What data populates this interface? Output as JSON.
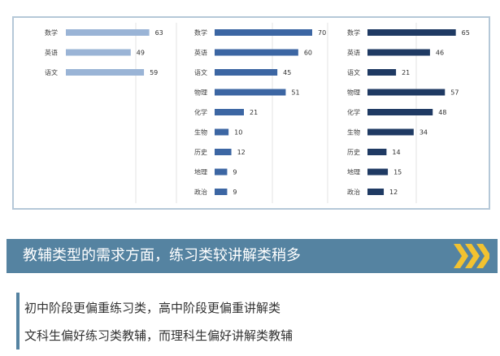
{
  "chart_data": [
    {
      "type": "bar",
      "orientation": "horizontal",
      "color": "#9ab4d6",
      "categories": [
        "数学",
        "英语",
        "语文"
      ],
      "values": [
        63,
        49,
        59
      ],
      "xlim": [
        0,
        70
      ],
      "grid": true
    },
    {
      "type": "bar",
      "orientation": "horizontal",
      "color": "#3c66a3",
      "categories": [
        "数学",
        "英语",
        "语文",
        "物理",
        "化学",
        "生物",
        "历史",
        "地理",
        "政治"
      ],
      "values": [
        70,
        60,
        45,
        51,
        21,
        10,
        12,
        9,
        9
      ],
      "xlim": [
        0,
        70
      ],
      "grid": true
    },
    {
      "type": "bar",
      "orientation": "horizontal",
      "color": "#1f3a63",
      "categories": [
        "数学",
        "英语",
        "语文",
        "物理",
        "化学",
        "生物",
        "历史",
        "地理",
        "政治"
      ],
      "values": [
        65,
        46,
        21,
        57,
        48,
        34,
        14,
        15,
        12
      ],
      "xlim": [
        0,
        70
      ],
      "grid": true
    }
  ],
  "banner": {
    "title": "教辅类型的需求方面，练习类较讲解类稍多",
    "background": "#5583a1",
    "accent": "#f2c230",
    "icon": "chevron-right-icon"
  },
  "notes": [
    "初中阶段更偏重练习类，高中阶段更偏重讲解类",
    "文科生偏好练习类教辅，而理科生偏好讲解类教辅"
  ]
}
